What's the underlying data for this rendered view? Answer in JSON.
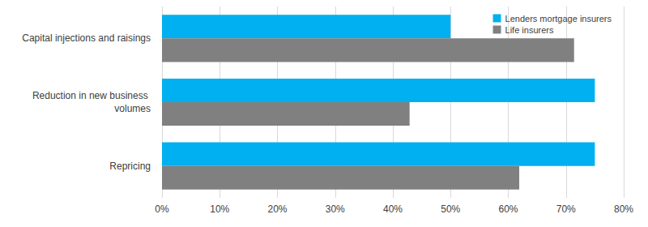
{
  "chart_data": {
    "type": "bar",
    "orientation": "horizontal",
    "categories": [
      "Capital injections and raisings",
      "Reduction in new business volumes",
      "Repricing"
    ],
    "series": [
      {
        "name": "Lenders mortgage insurers",
        "color": "#00b0f0",
        "values": [
          50,
          75,
          75
        ]
      },
      {
        "name": "Life insurers",
        "color": "#808080",
        "values": [
          71.4,
          42.9,
          61.9
        ]
      }
    ],
    "xlim": [
      0,
      80
    ],
    "xticks": [
      {
        "value": 0,
        "label": "0%"
      },
      {
        "value": 10,
        "label": "10%"
      },
      {
        "value": 20,
        "label": "20%"
      },
      {
        "value": 30,
        "label": "30%"
      },
      {
        "value": 40,
        "label": "40%"
      },
      {
        "value": 50,
        "label": "50%"
      },
      {
        "value": 60,
        "label": "60%"
      },
      {
        "value": 70,
        "label": "70%"
      },
      {
        "value": 80,
        "label": "80%"
      }
    ],
    "grid": true,
    "legend": "upper right"
  }
}
